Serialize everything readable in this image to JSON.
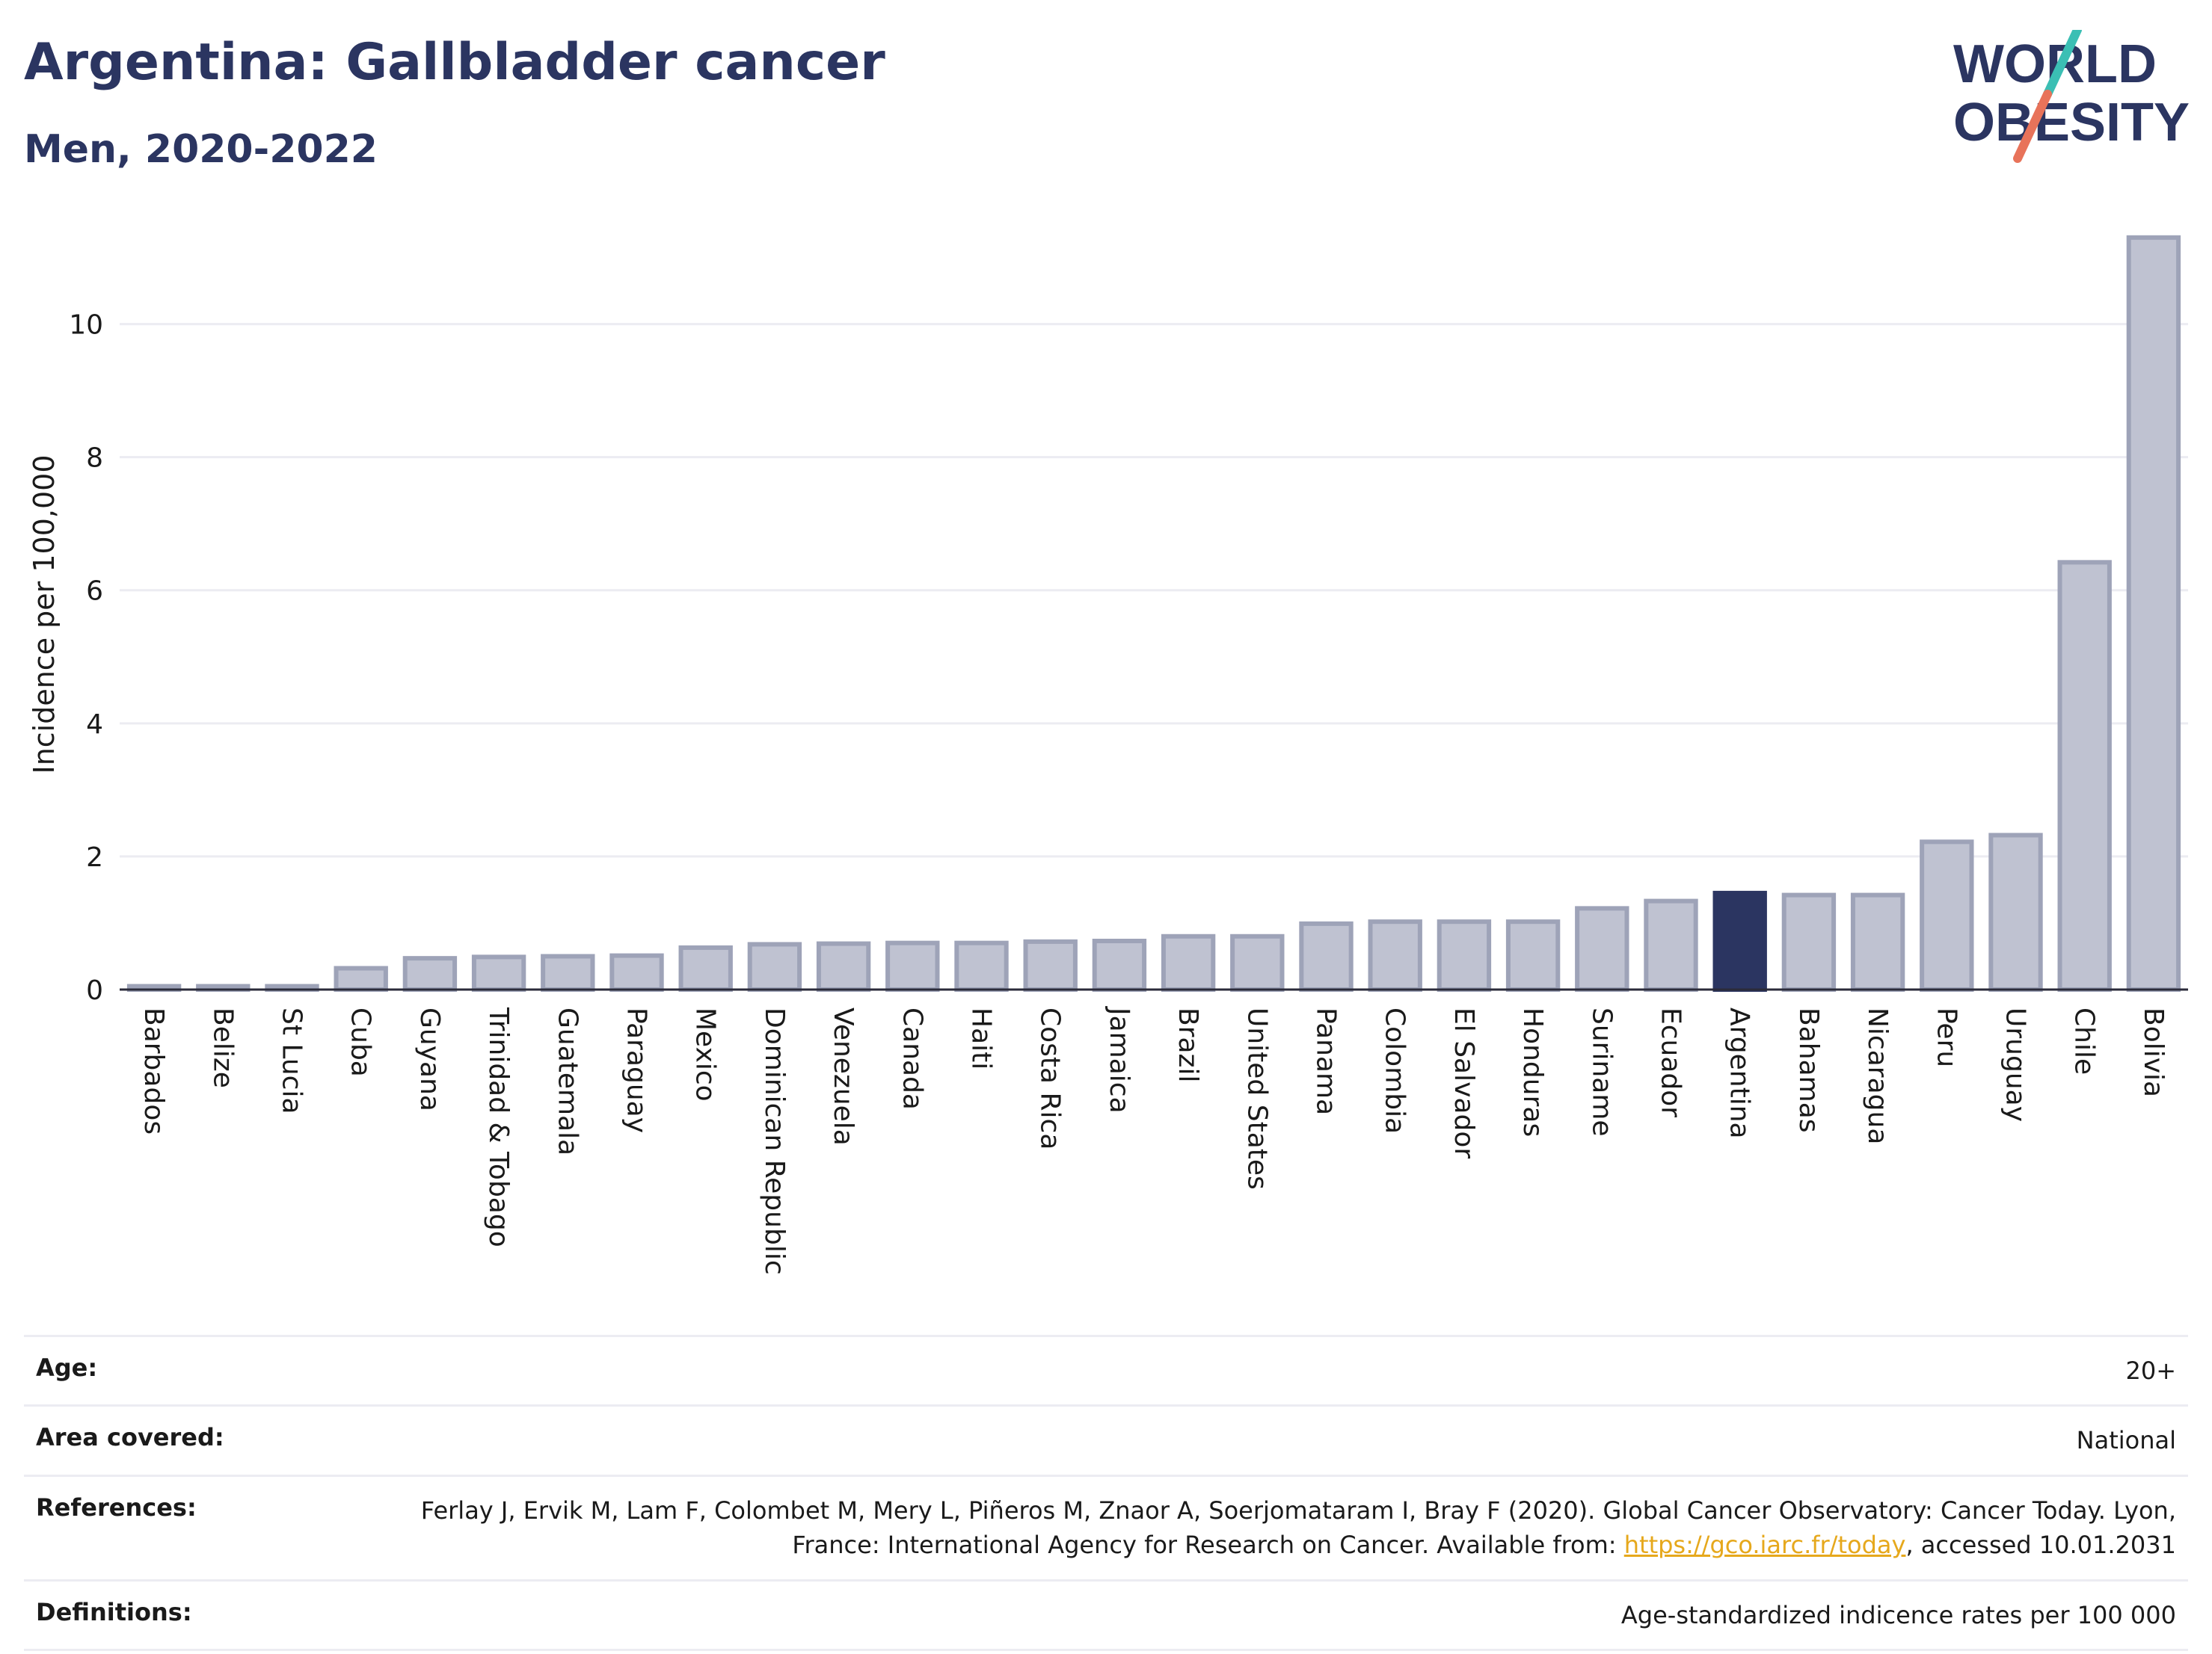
{
  "header": {
    "title": "Argentina: Gallbladder cancer",
    "subtitle": "Men, 2020-2022"
  },
  "logo": {
    "line1": "WORLD",
    "line2": "OBESITY",
    "accent_teal": "#3bbfb4",
    "accent_coral": "#e8735a"
  },
  "chart_data": {
    "type": "bar",
    "ylabel": "Incidence per 100,000",
    "ylim": [
      0,
      11.5
    ],
    "yticks": [
      0,
      2,
      4,
      6,
      8,
      10
    ],
    "grid": true,
    "highlight": "Argentina",
    "colors": {
      "bar": "#bfc2d1",
      "bar_edge": "#9ea3b8",
      "highlight": "#2b3561"
    },
    "categories": [
      "Barbados",
      "Belize",
      "St Lucia",
      "Cuba",
      "Guyana",
      "Trinidad & Tobago",
      "Guatemala",
      "Paraguay",
      "Mexico",
      "Dominican Republic",
      "Venezuela",
      "Canada",
      "Haiti",
      "Costa Rica",
      "Jamaica",
      "Brazil",
      "United States",
      "Panama",
      "Colombia",
      "El Salvador",
      "Honduras",
      "Suriname",
      "Ecuador",
      "Argentina",
      "Bahamas",
      "Nicaragua",
      "Peru",
      "Uruguay",
      "Chile",
      "Bolivia"
    ],
    "values": [
      0.05,
      0.05,
      0.05,
      0.32,
      0.47,
      0.49,
      0.5,
      0.51,
      0.63,
      0.68,
      0.69,
      0.7,
      0.7,
      0.72,
      0.73,
      0.8,
      0.8,
      0.99,
      1.02,
      1.02,
      1.02,
      1.22,
      1.33,
      1.45,
      1.42,
      1.42,
      2.22,
      2.32,
      6.42,
      11.3
    ]
  },
  "meta": [
    {
      "label": "Age:",
      "value": "20+"
    },
    {
      "label": "Area covered:",
      "value": "National"
    },
    {
      "label": "References:",
      "value_pre": "Ferlay J, Ervik M, Lam F, Colombet M, Mery L, Piñeros M, Znaor A, Soerjomataram I, Bray F (2020). Global Cancer Observatory: Cancer Today. Lyon, France: International Agency for Research on Cancer. Available from: ",
      "link": "https://gco.iarc.fr/today",
      "value_post": ", accessed 10.01.2031"
    },
    {
      "label": "Definitions:",
      "value": "Age-standardized indicence rates per 100 000"
    }
  ]
}
